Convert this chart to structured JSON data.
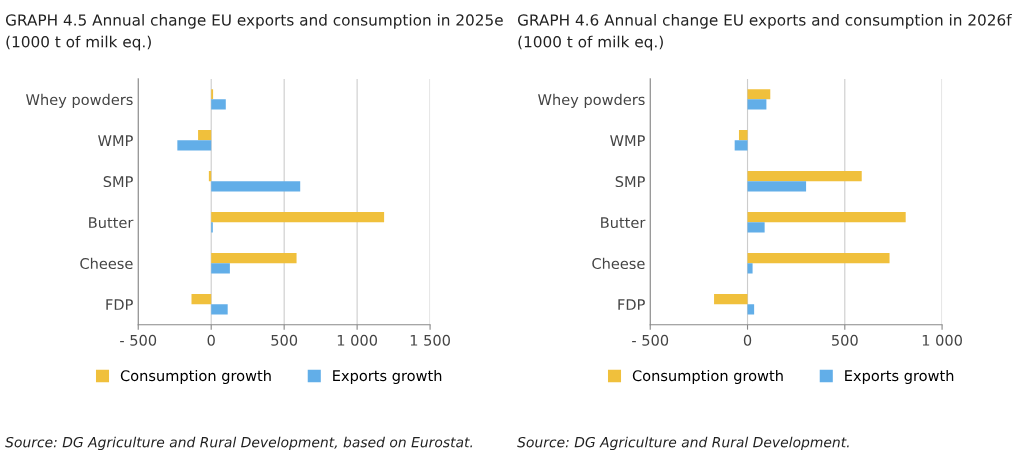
{
  "chart_data": [
    {
      "type": "bar",
      "orientation": "horizontal",
      "title": "GRAPH 4.5 Annual change EU exports and consumption in 2025e (1000 t of milk eq.)",
      "categories": [
        "Whey powders",
        "WMP",
        "SMP",
        "Butter",
        "Cheese",
        "FDP"
      ],
      "series": [
        {
          "name": "Consumption growth",
          "color": "#f0c03c",
          "values": [
            13,
            -90,
            -16,
            1185,
            585,
            -135
          ]
        },
        {
          "name": "Exports growth",
          "color": "#62aee8",
          "values": [
            100,
            -232,
            610,
            11,
            128,
            113
          ]
        }
      ],
      "xlim": [
        -500,
        1500
      ],
      "xticks": [
        {
          "value": -500,
          "label": "- 500"
        },
        0,
        500,
        {
          "value": 1000,
          "label": "1 000"
        },
        {
          "value": 1500,
          "label": "1 500"
        }
      ],
      "grid": "x",
      "legend": "bottom",
      "annotations": [
        "Source: DG Agriculture and Rural Development, based on Eurostat."
      ]
    },
    {
      "type": "bar",
      "orientation": "horizontal",
      "title": "GRAPH 4.6 Annual change EU exports and consumption in 2026f (1000 t of milk eq.)",
      "categories": [
        "Whey powders",
        "WMP",
        "SMP",
        "Butter",
        "Cheese",
        "FDP"
      ],
      "series": [
        {
          "name": "Consumption growth",
          "color": "#f0c03c",
          "values": [
            117,
            -44,
            587,
            813,
            730,
            -172
          ]
        },
        {
          "name": "Exports growth",
          "color": "#62aee8",
          "values": [
            97,
            -66,
            301,
            88,
            26,
            34
          ]
        }
      ],
      "xlim": [
        -500,
        1000
      ],
      "xticks": [
        {
          "value": -500,
          "label": "- 500"
        },
        0,
        500,
        {
          "value": 1000,
          "label": "1 000"
        }
      ],
      "grid": "x",
      "legend": "bottom",
      "annotations": [
        "Source: DG Agriculture and Rural Development."
      ]
    }
  ]
}
